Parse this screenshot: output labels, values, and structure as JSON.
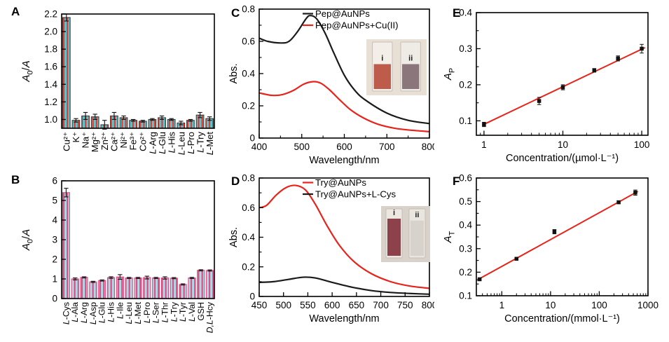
{
  "figure": {
    "background": "#ffffff",
    "accent_red": "#e8231a",
    "axis_color": "#000000"
  },
  "panels": {
    "A": {
      "label": "A"
    },
    "B": {
      "label": "B"
    },
    "C": {
      "label": "C"
    },
    "D": {
      "label": "D"
    },
    "E": {
      "label": "E"
    },
    "F": {
      "label": "F"
    }
  },
  "chart_data": [
    {
      "panel": "A",
      "type": "bar",
      "categories": [
        "Cu²⁺",
        "K⁺",
        "Na⁺",
        "Mg²⁺",
        "Zn²⁺",
        "Ca²⁺",
        "Ni²⁺",
        "Fe³⁺",
        "Co²⁺",
        "L-Arg",
        "L-Glu",
        "L-His",
        "L-Leu",
        "L-Pro",
        "L-Try",
        "L-Met"
      ],
      "values": [
        2.16,
        0.99,
        1.04,
        1.03,
        0.94,
        1.04,
        1.02,
        0.99,
        0.98,
        1.0,
        1.02,
        1.0,
        0.96,
        0.99,
        1.05,
        1.01
      ],
      "errors": [
        0.04,
        0.02,
        0.04,
        0.03,
        0.05,
        0.04,
        0.02,
        0.01,
        0.01,
        0.01,
        0.02,
        0.01,
        0.02,
        0.01,
        0.03,
        0.02
      ],
      "ylabel": "A₀/A",
      "ylabel_segs": [
        {
          "t": "A",
          "i": 1
        },
        {
          "t": "0",
          "s": 1
        },
        {
          "t": "/"
        },
        {
          "t": "A",
          "i": 1
        }
      ],
      "ylim": [
        0.9,
        2.2
      ],
      "yticks": [
        1.0,
        1.2,
        1.4,
        1.6,
        1.8,
        2.0,
        2.2
      ],
      "ytick_dec": 1,
      "bar_fill": "#57c7d4",
      "bar_stripe": "#ea3524",
      "bar_outline": "#3a3a3a"
    },
    {
      "panel": "B",
      "type": "bar",
      "categories": [
        "L-Cys",
        "L-Ala",
        "L-Arg",
        "L-Asp",
        "L-Glu",
        "L-His",
        "L-Ile",
        "L-Leu",
        "L-Met",
        "L-Pro",
        "L-Ser",
        "L-Thr",
        "L-Try",
        "L-Tyr",
        "L-Val",
        "GSH",
        "D,L-Hcy"
      ],
      "values": [
        5.4,
        1.0,
        1.08,
        0.85,
        0.92,
        1.07,
        1.1,
        1.05,
        1.05,
        1.07,
        1.05,
        1.05,
        1.04,
        0.72,
        1.05,
        1.44,
        1.43
      ],
      "errors": [
        0.22,
        0.05,
        0.03,
        0.03,
        0.03,
        0.04,
        0.12,
        0.03,
        0.03,
        0.07,
        0.03,
        0.06,
        0.03,
        0.03,
        0.03,
        0.03,
        0.03
      ],
      "ylabel": "A₀/A",
      "ylabel_segs": [
        {
          "t": "A",
          "i": 1
        },
        {
          "t": "0",
          "s": 1
        },
        {
          "t": "/"
        },
        {
          "t": "A",
          "i": 1
        }
      ],
      "ylim": [
        0,
        6
      ],
      "yticks": [
        0,
        1,
        2,
        3,
        4,
        5,
        6
      ],
      "ytick_dec": 0,
      "bar_fill": "#aadbe8",
      "bar_stripe": "#e0487d",
      "bar_outline": "#e0487d"
    },
    {
      "panel": "C",
      "type": "line",
      "xlabel": "Wavelength/nm",
      "ylabel": "Abs.",
      "xlim": [
        400,
        800
      ],
      "xticks": [
        400,
        500,
        600,
        700,
        800
      ],
      "xminor": [
        450,
        550,
        650,
        750
      ],
      "ylim": [
        0,
        0.8
      ],
      "yticks": [
        0,
        0.2,
        0.4,
        0.6,
        0.8
      ],
      "yminor": [
        0.1,
        0.3,
        0.5,
        0.7
      ],
      "ytick_dec": 1,
      "series": [
        {
          "name": "Pep@AuNPs",
          "color": "#1a1a1a",
          "x": [
            400,
            420,
            450,
            470,
            490,
            510,
            520,
            535,
            555,
            575,
            600,
            625,
            650,
            700,
            750,
            800
          ],
          "y": [
            0.62,
            0.6,
            0.59,
            0.6,
            0.66,
            0.74,
            0.76,
            0.74,
            0.65,
            0.53,
            0.39,
            0.295,
            0.235,
            0.155,
            0.11,
            0.09
          ]
        },
        {
          "name": "Pep@AuNPs+Cu(II)",
          "color": "#e8231a",
          "x": [
            400,
            430,
            455,
            480,
            505,
            527,
            545,
            565,
            590,
            615,
            645,
            680,
            720,
            760,
            800
          ],
          "y": [
            0.28,
            0.265,
            0.27,
            0.295,
            0.335,
            0.35,
            0.34,
            0.3,
            0.235,
            0.175,
            0.125,
            0.085,
            0.06,
            0.048,
            0.04
          ]
        }
      ],
      "inset": {
        "bg": "#e8e0d5",
        "cuvettes": [
          {
            "label": "i",
            "body": "#f3eee7",
            "liquid": "#bd5c4b",
            "fill_top": 0.45
          },
          {
            "label": "ii",
            "body": "#efebe5",
            "liquid": "#8b767c",
            "fill_top": 0.45
          }
        ]
      }
    },
    {
      "panel": "D",
      "type": "line",
      "xlabel": "Wavelength/nm",
      "ylabel": "Abs.",
      "xlim": [
        450,
        800
      ],
      "xticks": [
        450,
        500,
        550,
        600,
        650,
        700,
        750,
        800
      ],
      "xminor": [],
      "ylim": [
        0,
        0.8
      ],
      "yticks": [
        0,
        0.2,
        0.4,
        0.6,
        0.8
      ],
      "yminor": [
        0.1,
        0.3,
        0.5,
        0.7
      ],
      "ytick_dec": 1,
      "series": [
        {
          "name": "Try@AuNPs",
          "color": "#e8231a",
          "x": [
            450,
            465,
            485,
            505,
            525,
            545,
            565,
            590,
            615,
            645,
            680,
            720,
            760,
            800
          ],
          "y": [
            0.6,
            0.615,
            0.685,
            0.735,
            0.75,
            0.72,
            0.625,
            0.475,
            0.345,
            0.235,
            0.155,
            0.1,
            0.07,
            0.055
          ]
        },
        {
          "name": "Try@AuNPs+L-Cys",
          "color": "#1a1a1a",
          "x": [
            450,
            480,
            510,
            540,
            565,
            600,
            640,
            680,
            720,
            760,
            800
          ],
          "y": [
            0.095,
            0.1,
            0.115,
            0.13,
            0.125,
            0.095,
            0.063,
            0.04,
            0.027,
            0.02,
            0.015
          ]
        }
      ],
      "inset": {
        "bg": "#d9d2cb",
        "cuvettes": [
          {
            "label": "i",
            "body": "#ece7e0",
            "liquid": "#8d414a",
            "fill_top": 0.2
          },
          {
            "label": "ii",
            "body": "#e9e5df",
            "liquid": "#d7d2cc",
            "fill_top": 0.24
          }
        ]
      }
    },
    {
      "panel": "E",
      "type": "scatter_log",
      "xlabel": "Concentration/(µmol·L⁻¹)",
      "ylabel": "Aₚ",
      "ylabel_segs": [
        {
          "t": "A",
          "i": 1
        },
        {
          "t": "P",
          "s": 1
        }
      ],
      "xlim": [
        0.8,
        120
      ],
      "xticks": [
        1,
        10,
        100
      ],
      "ylim": [
        0.06,
        0.4
      ],
      "yticks": [
        0.1,
        0.2,
        0.3,
        0.4
      ],
      "yminor": [
        0.15,
        0.25,
        0.35
      ],
      "ytick_dec": 1,
      "points": {
        "x": [
          1,
          5,
          10,
          25,
          50,
          100
        ],
        "y": [
          0.09,
          0.155,
          0.193,
          0.24,
          0.273,
          0.3
        ],
        "err": [
          0.006,
          0.01,
          0.007,
          0.005,
          0.007,
          0.012
        ]
      },
      "fit": {
        "x": [
          0.95,
          110
        ],
        "y": [
          0.088,
          0.303
        ],
        "color": "#e8231a"
      }
    },
    {
      "panel": "F",
      "type": "scatter_log",
      "xlabel": "Concentration/(mmol·L⁻¹)",
      "ylabel": "Aₜ",
      "ylabel_segs": [
        {
          "t": "A",
          "i": 1
        },
        {
          "t": "T",
          "s": 1
        }
      ],
      "xlim": [
        0.3,
        1000
      ],
      "xticks": [
        1,
        10,
        100,
        1000
      ],
      "ylim": [
        0.1,
        0.6
      ],
      "yticks": [
        0.1,
        0.2,
        0.3,
        0.4,
        0.5,
        0.6
      ],
      "yminor": [
        0.15,
        0.25,
        0.35,
        0.45,
        0.55
      ],
      "ytick_dec": 1,
      "points": {
        "x": [
          0.35,
          2,
          12,
          250,
          550
        ],
        "y": [
          0.17,
          0.257,
          0.372,
          0.497,
          0.538
        ],
        "err": [
          0.004,
          0.005,
          0.009,
          0.006,
          0.011
        ]
      },
      "fit": {
        "x": [
          0.3,
          620
        ],
        "y": [
          0.165,
          0.543
        ],
        "color": "#e8231a"
      }
    }
  ]
}
